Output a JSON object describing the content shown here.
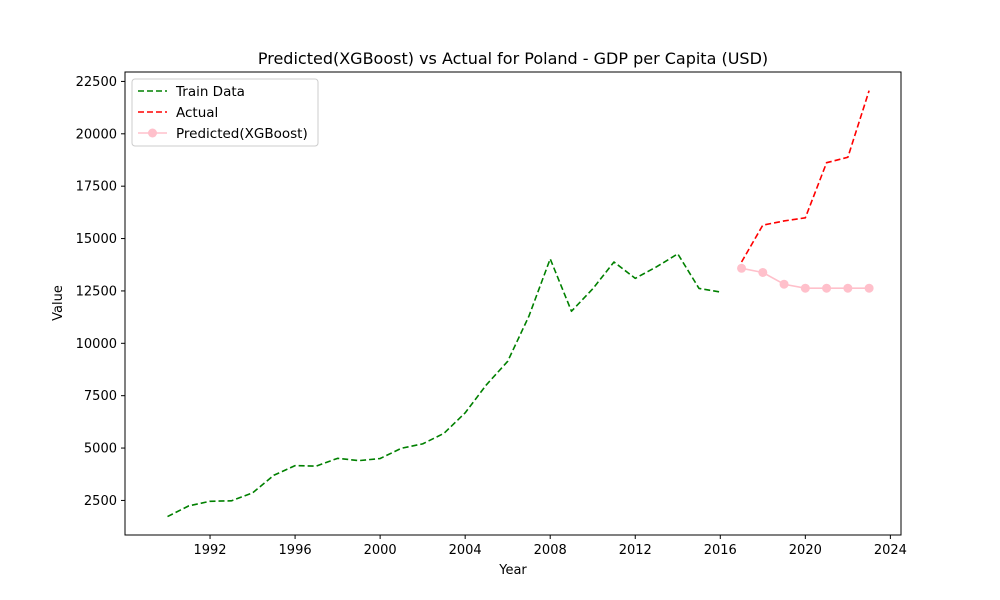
{
  "chart_data": {
    "type": "line",
    "title": "Predicted(XGBoost) vs Actual for Poland - GDP per Capita (USD)",
    "xlabel": "Year",
    "ylabel": "Value",
    "xlim": [
      1988,
      2024.5
    ],
    "ylim": [
      850,
      22950
    ],
    "xticks": [
      1992,
      1996,
      2000,
      2004,
      2008,
      2012,
      2016,
      2020,
      2024
    ],
    "yticks": [
      2500,
      5000,
      7500,
      10000,
      12500,
      15000,
      17500,
      20000,
      22500
    ],
    "grid": false,
    "legend_position": "top-left",
    "series": [
      {
        "name": "Train Data",
        "color": "#008000",
        "style": "dashed",
        "x": [
          1990,
          1991,
          1992,
          1993,
          1994,
          1995,
          1996,
          1997,
          1998,
          1999,
          2000,
          2001,
          2002,
          2003,
          2004,
          2005,
          2006,
          2007,
          2008,
          2009,
          2010,
          2011,
          2012,
          2013,
          2014,
          2015,
          2016
        ],
        "y": [
          1730,
          2240,
          2460,
          2480,
          2860,
          3700,
          4160,
          4140,
          4510,
          4400,
          4500,
          4990,
          5200,
          5700,
          6680,
          8020,
          9140,
          11300,
          14030,
          11530,
          12600,
          13880,
          13100,
          13650,
          14270,
          12620,
          12450
        ]
      },
      {
        "name": "Actual",
        "color": "#ff0000",
        "style": "dashed",
        "x": [
          2017,
          2018,
          2019,
          2020,
          2021,
          2022,
          2023
        ],
        "y": [
          13880,
          15640,
          15840,
          15990,
          18620,
          18880,
          22060
        ]
      },
      {
        "name": "Predicted(XGBoost)",
        "color": "#ffc0cb",
        "style": "solid-marker",
        "x": [
          2017,
          2018,
          2019,
          2020,
          2021,
          2022,
          2023
        ],
        "y": [
          13580,
          13380,
          12820,
          12630,
          12630,
          12630,
          12630
        ]
      }
    ]
  }
}
